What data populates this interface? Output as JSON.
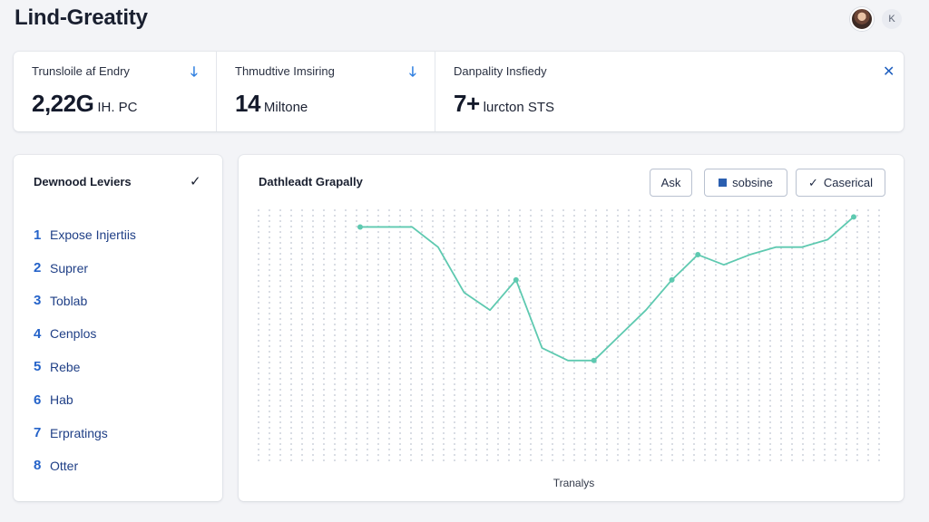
{
  "app": {
    "title": "Lind-Greatity"
  },
  "header": {
    "close_icon": "K"
  },
  "stats": [
    {
      "label": "Trunsloile af Endry",
      "value": "2,22G",
      "unit": "IH. PC",
      "icon": "arrow-down-icon",
      "icon_glyph": "🡓"
    },
    {
      "label": "Thmudtive Imsiring",
      "value": "14",
      "unit": "Miltone",
      "icon": "arrow-down-icon",
      "icon_glyph": "🡓"
    },
    {
      "label": "Danpality Insfiedy",
      "value": "7+",
      "unit": "lurcton STS",
      "icon": "close-icon",
      "icon_glyph": "✕"
    }
  ],
  "sidebar": {
    "title": "Dewnood Leviers",
    "items": [
      {
        "num": "1",
        "label": "Expose Injertiis"
      },
      {
        "num": "2",
        "label": "Suprer"
      },
      {
        "num": "3",
        "label": "Toblab"
      },
      {
        "num": "4",
        "label": "Cenplos"
      },
      {
        "num": "5",
        "label": "Rebe"
      },
      {
        "num": "6",
        "label": "Hab"
      },
      {
        "num": "7",
        "label": "Erpratings"
      },
      {
        "num": "8",
        "label": "Otter"
      }
    ]
  },
  "chart_panel": {
    "title": "Dathleadt Grapally",
    "buttons": {
      "ask": "Ask",
      "subsine": "sobsine",
      "casorical": "Caserical"
    },
    "colors": {
      "line": "#5ec9b0",
      "grid": "#d9dde4"
    }
  },
  "chart_data": {
    "type": "line",
    "xlabel": "Tranalys",
    "ylabel": "",
    "grid": true,
    "ylim": [
      0,
      100
    ],
    "x": [
      1,
      2,
      3,
      4,
      5,
      6,
      7,
      8,
      9,
      10,
      11,
      12,
      13,
      14,
      15,
      16,
      17,
      18,
      19,
      20
    ],
    "series": [
      {
        "values": [
          93,
          93,
          93,
          85,
          67,
          60,
          72,
          45,
          40,
          40,
          50,
          60,
          72,
          82,
          78,
          82,
          85,
          85,
          88,
          97
        ]
      }
    ],
    "markers_at": [
      0,
      6,
      9,
      12,
      13,
      19
    ]
  }
}
